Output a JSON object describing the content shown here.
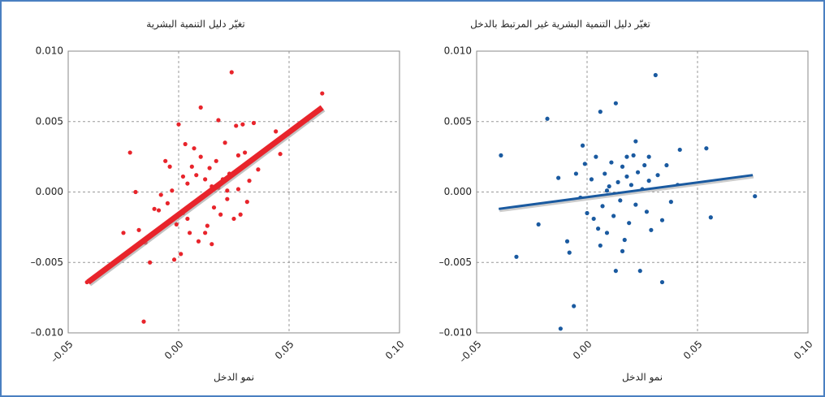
{
  "chart_data": [
    {
      "type": "scatter",
      "title": "تغيّر دليل التنمية البشرية",
      "x_label": "نمو الدخل",
      "color": "#e8242b",
      "xlim": [
        -0.05,
        0.1
      ],
      "ylim": [
        -0.01,
        0.01
      ],
      "xticks": [
        {
          "value": -0.05,
          "label": "–0.05"
        },
        {
          "value": 0,
          "label": "0.00"
        },
        {
          "value": 0.05,
          "label": "0.05"
        },
        {
          "value": 0.1,
          "label": "0.10"
        }
      ],
      "yticks": [
        {
          "value": -0.01,
          "label": "–0.010"
        },
        {
          "value": -0.005,
          "label": "–0.005"
        },
        {
          "value": 0,
          "label": "0.000"
        },
        {
          "value": 0.005,
          "label": "0.005"
        },
        {
          "value": 0.01,
          "label": "0.010"
        }
      ],
      "grid": true,
      "x": [
        -0.0415,
        -0.0158,
        -0.022,
        -0.0195,
        -0.025,
        -0.018,
        -0.013,
        -0.015,
        -0.011,
        -0.009,
        -0.006,
        -0.005,
        -0.003,
        -0.002,
        -0.001,
        0.0,
        0.001,
        0.002,
        0.003,
        0.004,
        0.005,
        0.006,
        0.007,
        0.008,
        0.009,
        0.01,
        0.01,
        0.011,
        0.012,
        0.013,
        0.014,
        0.015,
        0.016,
        0.017,
        0.018,
        0.019,
        0.02,
        0.021,
        0.022,
        0.023,
        0.024,
        0.025,
        0.026,
        0.027,
        0.028,
        0.029,
        0.03,
        0.032,
        0.034,
        0.036,
        0.046,
        0.065,
        0.044,
        -0.004,
        0.002,
        0.007,
        0.012,
        0.018,
        0.022,
        0.031,
        0.004,
        -0.008,
        0.015,
        0.027
      ],
      "values": [
        -0.0064,
        -0.0092,
        0.0028,
        0.0,
        -0.0029,
        -0.0027,
        -0.005,
        -0.0036,
        -0.0012,
        -0.0013,
        0.0022,
        -0.0008,
        0.0001,
        -0.0048,
        -0.0023,
        0.0048,
        -0.0044,
        -0.0015,
        0.0034,
        0.0006,
        -0.0029,
        0.0018,
        -0.0008,
        0.0012,
        -0.0035,
        0.0025,
        0.006,
        -0.0003,
        0.0009,
        -0.0024,
        0.0017,
        0.0004,
        -0.0011,
        0.0022,
        0.0003,
        -0.0016,
        0.0009,
        0.0035,
        -0.0005,
        0.0013,
        0.0085,
        -0.0019,
        0.0047,
        0.0002,
        -0.0016,
        0.0048,
        0.0028,
        0.0008,
        0.0049,
        0.0016,
        0.0027,
        0.007,
        0.0043,
        0.0018,
        0.0011,
        0.0031,
        -0.0029,
        0.0051,
        0.0001,
        -0.0007,
        -0.0019,
        -0.0002,
        -0.0037,
        0.0026
      ],
      "trend_line": {
        "x": [
          -0.041,
          0.065
        ],
        "values": [
          -0.0064,
          0.006
        ]
      }
    },
    {
      "type": "scatter",
      "title": "تغيّر دليل التنمية البشرية غير المرتبط بالدخل",
      "x_label": "نمو الدخل",
      "color": "#1a5aa0",
      "xlim": [
        -0.05,
        0.1
      ],
      "ylim": [
        -0.01,
        0.01
      ],
      "xticks": [
        {
          "value": -0.05,
          "label": "–0.05"
        },
        {
          "value": 0,
          "label": "0.00"
        },
        {
          "value": 0.05,
          "label": "0.05"
        },
        {
          "value": 0.1,
          "label": "0.10"
        }
      ],
      "yticks": [
        {
          "value": -0.01,
          "label": "–0.010"
        },
        {
          "value": -0.005,
          "label": "–0.005"
        },
        {
          "value": 0,
          "label": "0.000"
        },
        {
          "value": 0.005,
          "label": "0.005"
        },
        {
          "value": 0.01,
          "label": "0.010"
        }
      ],
      "grid": true,
      "x": [
        -0.039,
        -0.032,
        -0.018,
        -0.022,
        -0.013,
        -0.012,
        -0.009,
        -0.008,
        -0.006,
        -0.005,
        -0.003,
        -0.002,
        0.0,
        0.002,
        0.004,
        0.005,
        0.006,
        0.007,
        0.008,
        0.009,
        0.01,
        0.011,
        0.012,
        0.013,
        0.014,
        0.015,
        0.016,
        0.017,
        0.018,
        0.019,
        0.02,
        0.021,
        0.022,
        0.023,
        0.024,
        0.025,
        0.026,
        0.027,
        0.028,
        0.029,
        0.031,
        0.032,
        0.034,
        0.034,
        0.036,
        0.038,
        0.041,
        0.042,
        0.054,
        0.056,
        0.076,
        0.013,
        0.018,
        0.003,
        0.009,
        0.022,
        0.016,
        0.028,
        -0.001,
        0.006
      ],
      "values": [
        0.0026,
        -0.0046,
        0.0052,
        -0.0023,
        0.001,
        -0.0097,
        -0.0035,
        -0.0043,
        -0.0081,
        0.0013,
        -0.0004,
        0.0033,
        -0.0015,
        0.0009,
        0.0025,
        -0.0026,
        0.0057,
        -0.001,
        0.0013,
        -0.0029,
        0.0004,
        0.0021,
        -0.0017,
        0.0063,
        0.0007,
        -0.0006,
        0.0018,
        -0.0034,
        0.0011,
        -0.0022,
        0.0005,
        0.0026,
        -0.0009,
        0.0014,
        -0.0056,
        0.0002,
        0.0019,
        -0.0014,
        0.0008,
        -0.0027,
        0.0083,
        0.0012,
        -0.0064,
        -0.002,
        0.0019,
        -0.0007,
        0.0005,
        0.003,
        0.0031,
        -0.0018,
        -0.0003,
        -0.0056,
        0.0025,
        -0.0019,
        0.0001,
        0.0036,
        -0.0042,
        0.0025,
        0.002,
        -0.0038
      ],
      "trend_line": {
        "x": [
          -0.04,
          0.075
        ],
        "values": [
          -0.0012,
          0.0012
        ]
      }
    }
  ]
}
